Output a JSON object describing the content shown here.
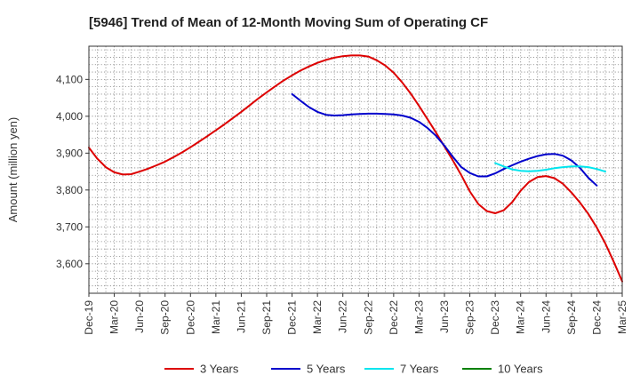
{
  "chart_data": {
    "type": "line",
    "title": "[5946]  Trend of Mean of 12-Month Moving Sum of Operating CF",
    "ylabel": "Amount (million yen)",
    "xlabel": "",
    "ylim": [
      3520,
      4190
    ],
    "yticks": [
      3600,
      3700,
      3800,
      3900,
      4000,
      4100
    ],
    "ytick_labels": [
      "3,600",
      "3,700",
      "3,800",
      "3,900",
      "4,000",
      "4,100"
    ],
    "x_tick_labels": [
      "Dec-19",
      "Mar-20",
      "Jun-20",
      "Sep-20",
      "Dec-20",
      "Mar-21",
      "Jun-21",
      "Sep-21",
      "Dec-21",
      "Mar-22",
      "Jun-22",
      "Sep-22",
      "Dec-22",
      "Mar-23",
      "Jun-23",
      "Sep-23",
      "Dec-23",
      "Mar-24",
      "Jun-24",
      "Sep-24",
      "Dec-24",
      "Mar-25"
    ],
    "x_start": "Dec-19",
    "x_months": 63,
    "grid": true,
    "legend_position": "bottom",
    "series": [
      {
        "name": "3 Years",
        "color": "#dd0000",
        "start_month": 0,
        "values": [
          3915,
          3885,
          3862,
          3848,
          3842,
          3843,
          3850,
          3858,
          3867,
          3877,
          3889,
          3902,
          3916,
          3931,
          3946,
          3962,
          3978,
          3995,
          4012,
          4030,
          4048,
          4065,
          4081,
          4097,
          4111,
          4124,
          4135,
          4145,
          4153,
          4159,
          4163,
          4165,
          4165,
          4162,
          4152,
          4138,
          4118,
          4092,
          4062,
          4028,
          3992,
          3956,
          3918,
          3880,
          3840,
          3796,
          3762,
          3743,
          3737,
          3745,
          3767,
          3798,
          3822,
          3835,
          3838,
          3832,
          3817,
          3793,
          3766,
          3735,
          3698,
          3655,
          3605,
          3552
        ]
      },
      {
        "name": "5 Years",
        "color": "#0000cc",
        "start_month": 24,
        "values": [
          4060,
          4042,
          4025,
          4012,
          4004,
          4002,
          4003,
          4005,
          4006,
          4007,
          4007,
          4006,
          4005,
          4002,
          3996,
          3985,
          3968,
          3947,
          3920,
          3890,
          3862,
          3846,
          3837,
          3837,
          3845,
          3857,
          3867,
          3877,
          3885,
          3892,
          3897,
          3898,
          3893,
          3880,
          3860,
          3833,
          3812
        ]
      },
      {
        "name": "7 Years",
        "color": "#00e5ee",
        "start_month": 48,
        "values": [
          3873,
          3864,
          3856,
          3852,
          3851,
          3852,
          3855,
          3859,
          3862,
          3864,
          3864,
          3862,
          3857,
          3850
        ]
      },
      {
        "name": "10 Years",
        "color": "#008000",
        "start_month": 63,
        "values": []
      }
    ]
  }
}
